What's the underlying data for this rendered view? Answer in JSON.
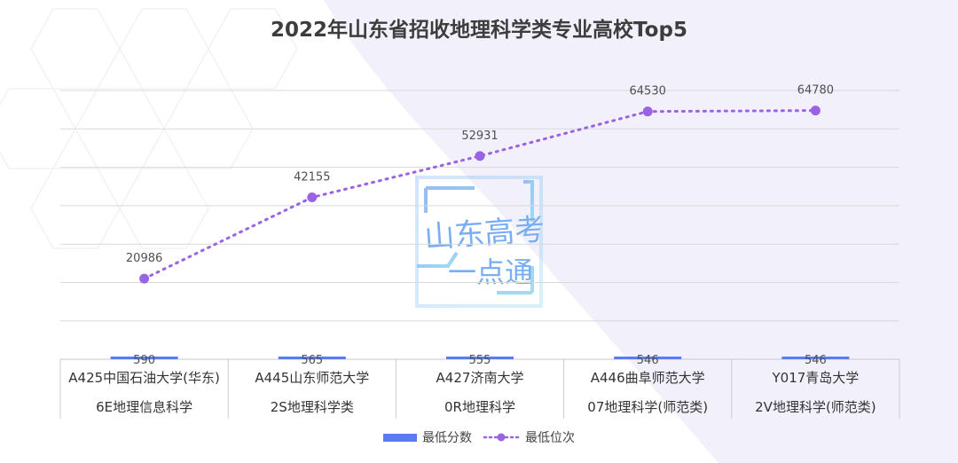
{
  "chart_data": {
    "type": "bar+line",
    "title": "2022年山东省招收地理科学类专业高校Top5",
    "categories": [
      {
        "line1": "A425中国石油大学(华东)",
        "line2": "6E地理信息科学"
      },
      {
        "line1": "A445山东师范大学",
        "line2": "2S地理科学类"
      },
      {
        "line1": "A427济南大学",
        "line2": "0R地理科学"
      },
      {
        "line1": "A446曲阜师范大学",
        "line2": "07地理科学(师范类)"
      },
      {
        "line1": "Y017青岛大学",
        "line2": "2V地理科学(师范类)"
      }
    ],
    "series": [
      {
        "name": "最低分数",
        "type": "bar",
        "color": "#5b7cf0",
        "values": [
          590,
          565,
          555,
          546,
          546
        ]
      },
      {
        "name": "最低位次",
        "type": "line",
        "style": "dotted",
        "color": "#9a63e3",
        "values": [
          20986,
          42155,
          52931,
          64530,
          64780
        ]
      }
    ],
    "grid": true,
    "legend": "bottom-center"
  },
  "watermark": {
    "line1": "山东高考",
    "line2": "一点通"
  }
}
